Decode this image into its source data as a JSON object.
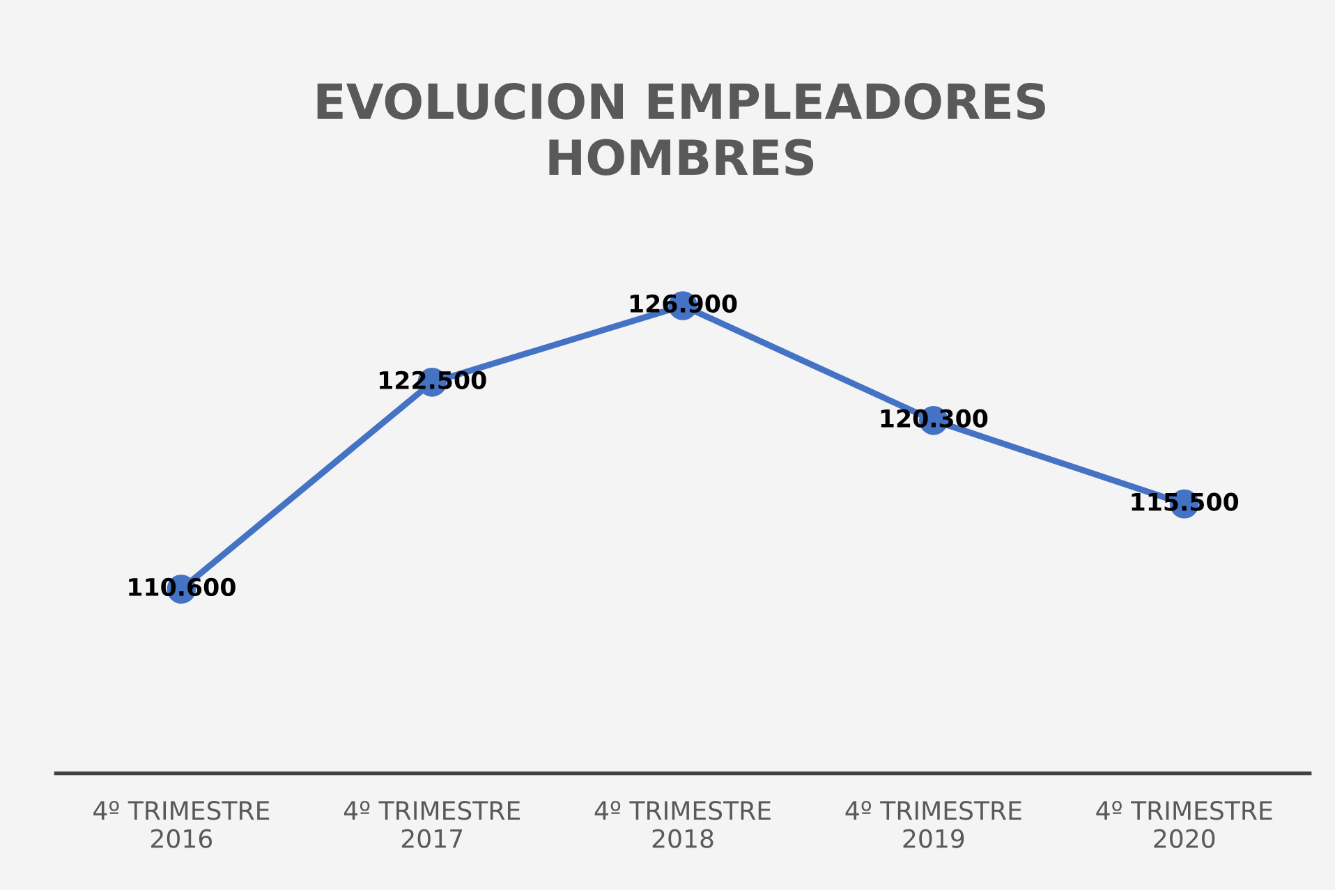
{
  "chart_data": {
    "type": "line",
    "title": "EVOLUCION EMPLEADORES\nHOMBRES",
    "categories": [
      "4º TRIMESTRE\n2016",
      "4º TRIMESTRE\n2017",
      "4º TRIMESTRE\n2018",
      "4º TRIMESTRE\n2019",
      "4º TRIMESTRE\n2020"
    ],
    "series": [
      {
        "color": "#4472c4",
        "values": [
          110600,
          122500,
          126900,
          120300,
          115500
        ],
        "value_labels": [
          "110.600",
          "122.500",
          "126.900",
          "120.300",
          "115.500"
        ]
      }
    ],
    "tick_labels": "x",
    "marker": "circle",
    "line_style": "solid",
    "grid": false,
    "legend": false
  }
}
